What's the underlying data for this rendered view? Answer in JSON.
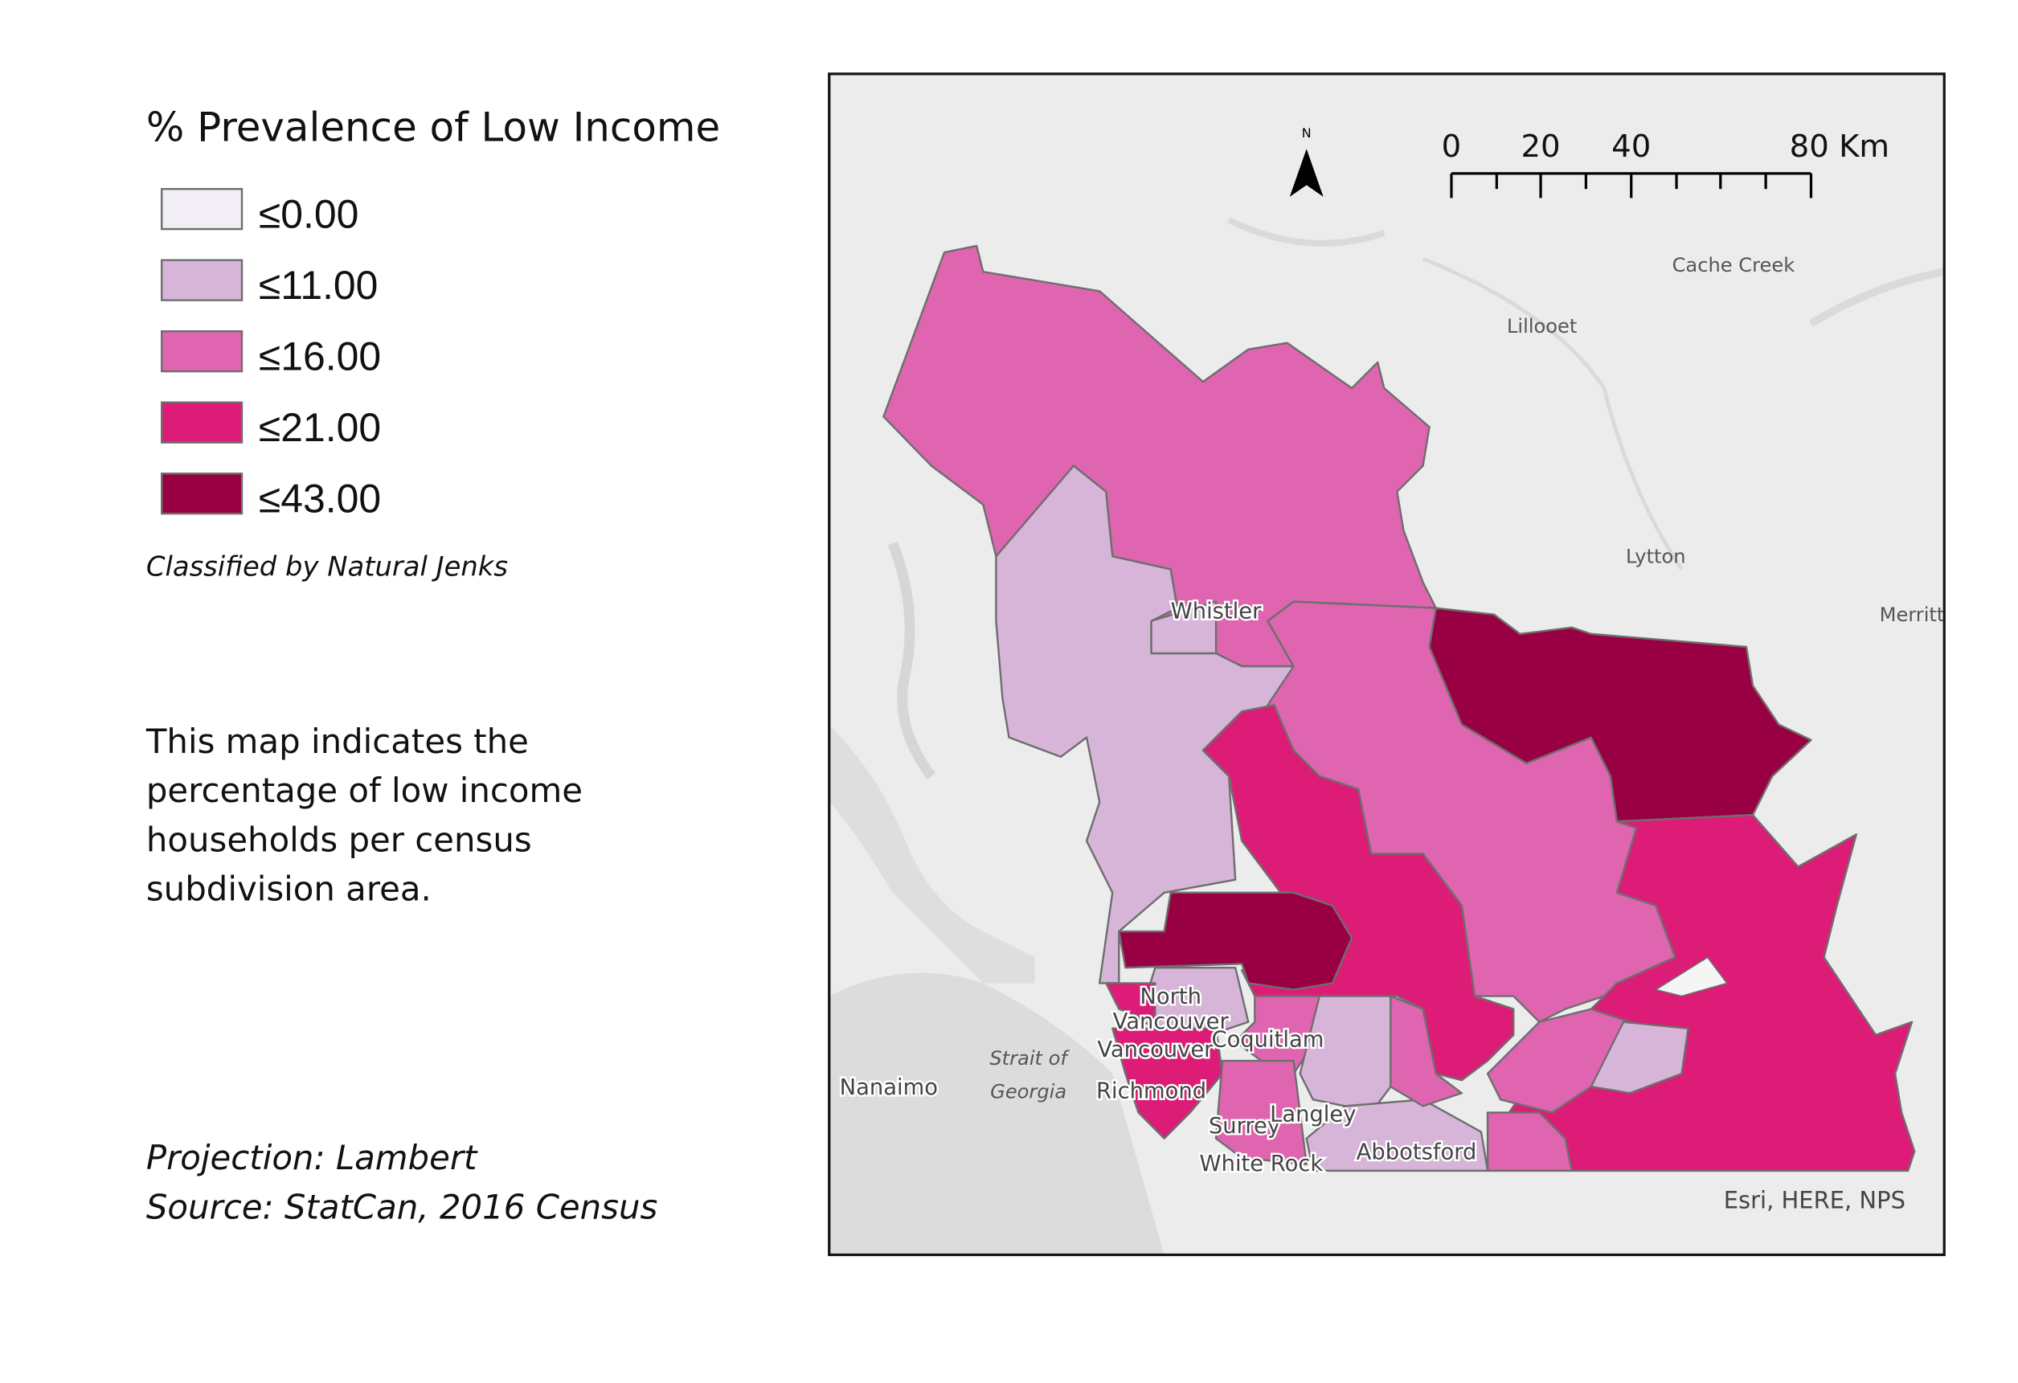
{
  "legend": {
    "title": "% Prevalence of Low Income",
    "items": [
      {
        "label": "≤0.00",
        "color": "#f1eef6"
      },
      {
        "label": "≤11.00",
        "color": "#d7b5d8"
      },
      {
        "label": "≤16.00",
        "color": "#df65b0"
      },
      {
        "label": "≤21.00",
        "color": "#dd1c77"
      },
      {
        "label": "≤43.00",
        "color": "#980043"
      }
    ],
    "note": "Classified by Natural Jenks"
  },
  "description": [
    "This map indicates the",
    "percentage of low income",
    "households per census",
    "subdivision area."
  ],
  "projection": "Projection: Lambert",
  "source": "Source: StatCan, 2016 Census",
  "map": {
    "north": "N",
    "scale_labels": [
      "0",
      "20",
      "40",
      "80 Km"
    ],
    "places": [
      "Cache Creek",
      "Lillooet",
      "Lytton",
      "Merritt",
      "Whistler",
      "North",
      "Vancouver",
      "Vancouver",
      "Coquitlam",
      "Strait of",
      "Georgia",
      "Richmond",
      "Nanaimo",
      "Surrey",
      "Langley",
      "Abbotsford",
      "White Rock"
    ],
    "attribution": "Esri, HERE, NPS"
  }
}
